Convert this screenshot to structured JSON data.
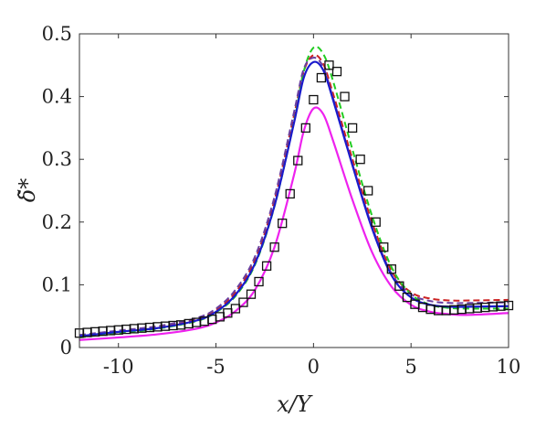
{
  "chart_data": {
    "type": "line",
    "title": "",
    "xlabel": "x/Y",
    "ylabel": "δ̃*",
    "xlim": [
      -12,
      10
    ],
    "ylim": [
      0,
      0.5
    ],
    "x_ticks": [
      -10,
      -5,
      0,
      5,
      10
    ],
    "x_tick_labels": [
      "-10",
      "-5",
      "0",
      "5",
      "10"
    ],
    "y_ticks": [
      0,
      0.1,
      0.2,
      0.3,
      0.4,
      0.5
    ],
    "y_tick_labels": [
      "0",
      "0.1",
      "0.2",
      "0.3",
      "0.4",
      "0.5"
    ],
    "grid": false,
    "legend": "none",
    "series": [
      {
        "color": "#cc2222",
        "style": "dashed",
        "marker": "none",
        "points": [
          [
            -12,
            0.018
          ],
          [
            -10,
            0.025
          ],
          [
            -8,
            0.032
          ],
          [
            -6,
            0.045
          ],
          [
            -5,
            0.06
          ],
          [
            -4,
            0.088
          ],
          [
            -3,
            0.14
          ],
          [
            -2,
            0.235
          ],
          [
            -1,
            0.37
          ],
          [
            -0.5,
            0.44
          ],
          [
            0,
            0.466
          ],
          [
            0.5,
            0.452
          ],
          [
            1,
            0.405
          ],
          [
            2,
            0.3
          ],
          [
            3,
            0.2
          ],
          [
            4,
            0.122
          ],
          [
            5,
            0.088
          ],
          [
            6,
            0.078
          ],
          [
            7,
            0.075
          ],
          [
            8,
            0.075
          ],
          [
            10,
            0.076
          ]
        ]
      },
      {
        "color": "#22cc22",
        "style": "dashed",
        "marker": "none",
        "points": [
          [
            -12,
            0.016
          ],
          [
            -10,
            0.023
          ],
          [
            -8,
            0.03
          ],
          [
            -6,
            0.042
          ],
          [
            -5,
            0.056
          ],
          [
            -4,
            0.082
          ],
          [
            -3,
            0.132
          ],
          [
            -2,
            0.225
          ],
          [
            -1,
            0.36
          ],
          [
            -0.5,
            0.44
          ],
          [
            0,
            0.478
          ],
          [
            0.5,
            0.468
          ],
          [
            1,
            0.425
          ],
          [
            2,
            0.315
          ],
          [
            3,
            0.21
          ],
          [
            4,
            0.128
          ],
          [
            5,
            0.085
          ],
          [
            6,
            0.068
          ],
          [
            7,
            0.063
          ],
          [
            8,
            0.062
          ],
          [
            10,
            0.062
          ]
        ]
      },
      {
        "color": "#6a3fa0",
        "style": "dashed",
        "marker": "none",
        "points": [
          [
            -12,
            0.02
          ],
          [
            -10,
            0.027
          ],
          [
            -8,
            0.034
          ],
          [
            -6,
            0.047
          ],
          [
            -5,
            0.062
          ],
          [
            -4,
            0.092
          ],
          [
            -3,
            0.145
          ],
          [
            -2,
            0.24
          ],
          [
            -1,
            0.375
          ],
          [
            -0.5,
            0.444
          ],
          [
            0,
            0.462
          ],
          [
            0.5,
            0.447
          ],
          [
            1,
            0.398
          ],
          [
            2,
            0.292
          ],
          [
            3,
            0.193
          ],
          [
            4,
            0.118
          ],
          [
            5,
            0.085
          ],
          [
            6,
            0.074
          ],
          [
            7,
            0.071
          ],
          [
            8,
            0.071
          ],
          [
            10,
            0.072
          ]
        ]
      },
      {
        "color": "#1a1acc",
        "style": "solid",
        "marker": "none",
        "points": [
          [
            -12,
            0.018
          ],
          [
            -10,
            0.025
          ],
          [
            -8,
            0.031
          ],
          [
            -6,
            0.043
          ],
          [
            -5,
            0.057
          ],
          [
            -4,
            0.084
          ],
          [
            -3,
            0.134
          ],
          [
            -2,
            0.226
          ],
          [
            -1,
            0.358
          ],
          [
            -0.5,
            0.43
          ],
          [
            0,
            0.455
          ],
          [
            0.5,
            0.442
          ],
          [
            1,
            0.395
          ],
          [
            2,
            0.29
          ],
          [
            3,
            0.19
          ],
          [
            4,
            0.115
          ],
          [
            5,
            0.08
          ],
          [
            6,
            0.068
          ],
          [
            7,
            0.065
          ],
          [
            8,
            0.065
          ],
          [
            10,
            0.066
          ]
        ]
      },
      {
        "color": "#ee22ee",
        "style": "solid",
        "marker": "none",
        "points": [
          [
            -12,
            0.012
          ],
          [
            -10,
            0.016
          ],
          [
            -8,
            0.021
          ],
          [
            -6,
            0.03
          ],
          [
            -5,
            0.04
          ],
          [
            -4,
            0.058
          ],
          [
            -3,
            0.092
          ],
          [
            -2,
            0.16
          ],
          [
            -1,
            0.275
          ],
          [
            -0.5,
            0.345
          ],
          [
            0,
            0.381
          ],
          [
            0.5,
            0.372
          ],
          [
            1,
            0.33
          ],
          [
            2,
            0.235
          ],
          [
            3,
            0.152
          ],
          [
            4,
            0.097
          ],
          [
            5,
            0.068
          ],
          [
            6,
            0.057
          ],
          [
            7,
            0.053
          ],
          [
            8,
            0.052
          ],
          [
            10,
            0.055
          ]
        ]
      },
      {
        "color": "#111111",
        "style": "none",
        "marker": "square",
        "points": [
          [
            -12,
            0.023
          ],
          [
            -11.6,
            0.024
          ],
          [
            -11.2,
            0.025
          ],
          [
            -10.8,
            0.026
          ],
          [
            -10.4,
            0.027
          ],
          [
            -10,
            0.028
          ],
          [
            -9.6,
            0.029
          ],
          [
            -9.2,
            0.03
          ],
          [
            -8.8,
            0.031
          ],
          [
            -8.4,
            0.032
          ],
          [
            -8,
            0.033
          ],
          [
            -7.6,
            0.034
          ],
          [
            -7.2,
            0.035
          ],
          [
            -6.8,
            0.036
          ],
          [
            -6.4,
            0.038
          ],
          [
            -6,
            0.04
          ],
          [
            -5.6,
            0.042
          ],
          [
            -5.2,
            0.045
          ],
          [
            -4.8,
            0.049
          ],
          [
            -4.4,
            0.055
          ],
          [
            -4,
            0.062
          ],
          [
            -3.6,
            0.072
          ],
          [
            -3.2,
            0.085
          ],
          [
            -2.8,
            0.105
          ],
          [
            -2.4,
            0.13
          ],
          [
            -2,
            0.16
          ],
          [
            -1.6,
            0.198
          ],
          [
            -1.2,
            0.245
          ],
          [
            -0.8,
            0.298
          ],
          [
            -0.4,
            0.35
          ],
          [
            0,
            0.395
          ],
          [
            0.4,
            0.43
          ],
          [
            0.8,
            0.45
          ],
          [
            1.2,
            0.44
          ],
          [
            1.6,
            0.4
          ],
          [
            2,
            0.35
          ],
          [
            2.4,
            0.3
          ],
          [
            2.8,
            0.25
          ],
          [
            3.2,
            0.2
          ],
          [
            3.6,
            0.16
          ],
          [
            4,
            0.125
          ],
          [
            4.4,
            0.098
          ],
          [
            4.8,
            0.08
          ],
          [
            5.2,
            0.069
          ],
          [
            5.6,
            0.064
          ],
          [
            6,
            0.061
          ],
          [
            6.4,
            0.059
          ],
          [
            6.8,
            0.059
          ],
          [
            7.2,
            0.06
          ],
          [
            7.6,
            0.061
          ],
          [
            8,
            0.062
          ],
          [
            8.4,
            0.063
          ],
          [
            8.8,
            0.064
          ],
          [
            9.2,
            0.065
          ],
          [
            9.6,
            0.066
          ],
          [
            10,
            0.067
          ]
        ]
      }
    ]
  }
}
